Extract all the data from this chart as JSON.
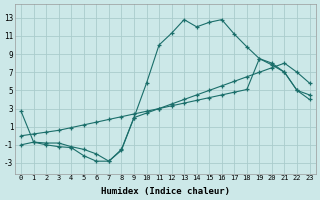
{
  "bg_color": "#cce8e8",
  "grid_color": "#aacccc",
  "line_color": "#1a6e6a",
  "xlabel": "Humidex (Indice chaleur)",
  "xlim": [
    -0.5,
    23.5
  ],
  "ylim": [
    -4.2,
    14.5
  ],
  "xticks": [
    0,
    1,
    2,
    3,
    4,
    5,
    6,
    7,
    8,
    9,
    10,
    11,
    12,
    13,
    14,
    15,
    16,
    17,
    18,
    19,
    20,
    21,
    22,
    23
  ],
  "yticks": [
    -3,
    -1,
    1,
    3,
    5,
    7,
    9,
    11,
    13
  ],
  "curve1_x": [
    0,
    1,
    2,
    3,
    4,
    5,
    6,
    7,
    8,
    9,
    10,
    11,
    12,
    13,
    14,
    15,
    16,
    17,
    18,
    19,
    20,
    21,
    22,
    23
  ],
  "curve1_y": [
    2.7,
    -0.7,
    -1.0,
    -1.2,
    -1.3,
    -2.2,
    -2.8,
    -2.8,
    -1.5,
    2.0,
    5.8,
    10.0,
    11.3,
    12.8,
    12.0,
    12.5,
    12.8,
    11.2,
    9.8,
    8.5,
    7.8,
    7.0,
    5.0,
    4.5
  ],
  "curve2_x": [
    0,
    1,
    2,
    3,
    4,
    5,
    6,
    7,
    8,
    9,
    10,
    11,
    12,
    13,
    14,
    15,
    16,
    17,
    18,
    19,
    20,
    21,
    22,
    23
  ],
  "curve2_y": [
    -1.0,
    -0.7,
    -0.8,
    -0.8,
    -1.2,
    -1.5,
    -2.0,
    -2.8,
    -1.6,
    2.0,
    2.5,
    3.0,
    3.5,
    4.0,
    4.5,
    5.0,
    5.5,
    6.0,
    6.5,
    7.0,
    7.5,
    8.0,
    7.0,
    5.8
  ],
  "curve3_x": [
    0,
    1,
    2,
    3,
    4,
    5,
    6,
    7,
    8,
    9,
    10,
    11,
    12,
    13,
    14,
    15,
    16,
    17,
    18,
    19,
    20,
    21,
    22,
    23
  ],
  "curve3_y": [
    0.0,
    0.2,
    0.4,
    0.6,
    0.9,
    1.2,
    1.5,
    1.8,
    2.1,
    2.4,
    2.7,
    3.0,
    3.3,
    3.6,
    3.9,
    4.2,
    4.5,
    4.8,
    5.1,
    8.5,
    8.0,
    7.0,
    5.0,
    4.0
  ]
}
